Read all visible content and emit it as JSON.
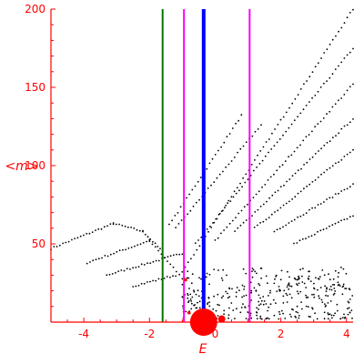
{
  "chart_data": {
    "type": "scatter",
    "title": "",
    "xlabel": "E",
    "ylabel": "<m>",
    "xlim": [
      -5,
      4.2
    ],
    "ylim": [
      0,
      200
    ],
    "x_ticks": [
      {
        "value": -4,
        "label": "-4"
      },
      {
        "value": -2,
        "label": "-2"
      },
      {
        "value": 0,
        "label": "0"
      },
      {
        "value": 2,
        "label": "2"
      },
      {
        "value": 4,
        "label": "4"
      }
    ],
    "y_ticks": [
      {
        "value": 50,
        "label": "50"
      },
      {
        "value": 100,
        "label": "100"
      },
      {
        "value": 150,
        "label": "150"
      },
      {
        "value": 200,
        "label": "200"
      }
    ],
    "axis_color": "#ff0000",
    "grid": false,
    "legend": "none",
    "point_color": "#000000",
    "vertical_lines": [
      {
        "x": -1.6,
        "color": "#007700"
      },
      {
        "x": -0.95,
        "color": "#ff00ff"
      },
      {
        "x": -0.35,
        "color": "#0000ff"
      },
      {
        "x": 1.05,
        "color": "#ff00ff"
      }
    ],
    "series": [
      {
        "x_start": -5.0,
        "x_end": -3.1,
        "y_start": 47,
        "y_end": 63
      },
      {
        "x_start": -3.1,
        "x_end": -2.2,
        "y_start": 63,
        "y_end": 58
      },
      {
        "x_start": -2.2,
        "x_end": -1.6,
        "y_start": 58,
        "y_end": 45
      },
      {
        "x_start": -3.9,
        "x_end": -2.0,
        "y_start": 38,
        "y_end": 52
      },
      {
        "x_start": -2.0,
        "x_end": -1.0,
        "y_start": 52,
        "y_end": 28
      },
      {
        "x_start": -3.3,
        "x_end": -1.0,
        "y_start": 30,
        "y_end": 44
      },
      {
        "x_start": -2.5,
        "x_end": -1.2,
        "y_start": 23,
        "y_end": 30
      },
      {
        "x_start": -1.4,
        "x_end": 0.8,
        "y_start": 62,
        "y_end": 132
      },
      {
        "x_start": -1.2,
        "x_end": 1.4,
        "y_start": 60,
        "y_end": 126
      },
      {
        "x_start": -1.0,
        "x_end": 4.2,
        "y_start": 32,
        "y_end": 200
      },
      {
        "x_start": -0.6,
        "x_end": 4.2,
        "y_start": 50,
        "y_end": 175
      },
      {
        "x_start": 0.0,
        "x_end": 4.2,
        "y_start": 52,
        "y_end": 152
      },
      {
        "x_start": 0.6,
        "x_end": 4.2,
        "y_start": 58,
        "y_end": 130
      },
      {
        "x_start": 1.2,
        "x_end": 4.2,
        "y_start": 60,
        "y_end": 110
      },
      {
        "x_start": 1.8,
        "x_end": 4.2,
        "y_start": 58,
        "y_end": 88
      },
      {
        "x_start": 2.4,
        "x_end": 4.2,
        "y_start": 50,
        "y_end": 68
      }
    ],
    "scatter_cloud": {
      "x_range": [
        -1.0,
        4.2
      ],
      "y_range": [
        2,
        35
      ]
    },
    "highlight_markers": [
      {
        "x": -0.35,
        "y": 0,
        "size": "large",
        "color": "#ff0000"
      },
      {
        "x": 0.2,
        "y": 2,
        "size": "small",
        "color": "#ff0000"
      },
      {
        "x": -0.8,
        "y": 6,
        "size": "tiny",
        "color": "#ff0000"
      },
      {
        "x": -0.9,
        "y": 27,
        "size": "tiny",
        "color": "#ff0000"
      }
    ]
  }
}
